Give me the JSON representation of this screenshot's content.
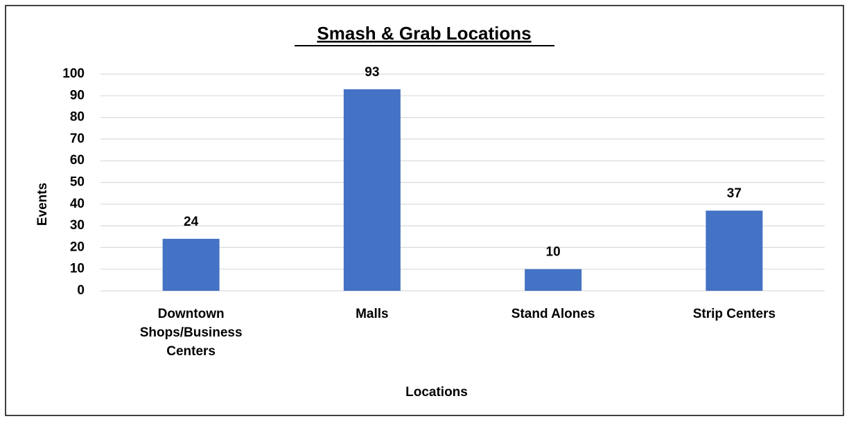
{
  "chart_data": {
    "type": "bar",
    "title": "Smash & Grab Locations",
    "x_label": "Locations",
    "y_label": "Events",
    "categories": [
      "Downtown Shops/Business Centers",
      "Malls",
      "Stand Alones",
      "Strip Centers"
    ],
    "values": [
      24,
      93,
      10,
      37
    ],
    "color": "#4472c4",
    "ylim": [
      0,
      100
    ],
    "yticks": [
      0,
      10,
      20,
      30,
      40,
      50,
      60,
      70,
      80,
      90,
      100
    ],
    "grid": true
  }
}
